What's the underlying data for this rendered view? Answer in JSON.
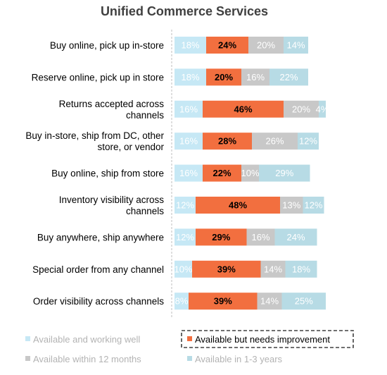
{
  "chart_data": {
    "type": "bar",
    "orientation": "horizontal",
    "stacked": true,
    "title": "Unified Commerce Services",
    "categories": [
      [
        "Buy online, pick up in-store"
      ],
      [
        "Reserve online, pick up in store"
      ],
      [
        "Returns accepted across",
        "channels"
      ],
      [
        "Buy in-store, ship from DC, other",
        "store, or vendor"
      ],
      [
        "Buy online, ship from store"
      ],
      [
        "Inventory visibility across",
        "channels"
      ],
      [
        "Buy anywhere, ship anywhere"
      ],
      [
        "Special order from any channel"
      ],
      [
        "Order visibility across channels"
      ]
    ],
    "series": [
      {
        "name": "Available and working well",
        "color": "#c6e8f5",
        "text_color": "#ffffff",
        "values": [
          18,
          18,
          16,
          16,
          16,
          12,
          12,
          10,
          8
        ]
      },
      {
        "name": "Available but needs improvement",
        "color": "#f26f3f",
        "text_color": "#000000",
        "values": [
          24,
          20,
          46,
          28,
          22,
          48,
          29,
          39,
          39
        ]
      },
      {
        "name": "Available within 12 months",
        "color": "#c8c8c8",
        "text_color": "#ffffff",
        "values": [
          20,
          16,
          20,
          26,
          10,
          13,
          16,
          14,
          14
        ]
      },
      {
        "name": "Available in 1-3 years",
        "color": "#b7dbe5",
        "text_color": "#ffffff",
        "values": [
          14,
          22,
          4,
          12,
          29,
          12,
          24,
          18,
          25
        ]
      }
    ],
    "value_suffix": "%",
    "legend_position": "bottom",
    "highlighted_legend_entry": "Available but needs improvement",
    "grid": false
  }
}
